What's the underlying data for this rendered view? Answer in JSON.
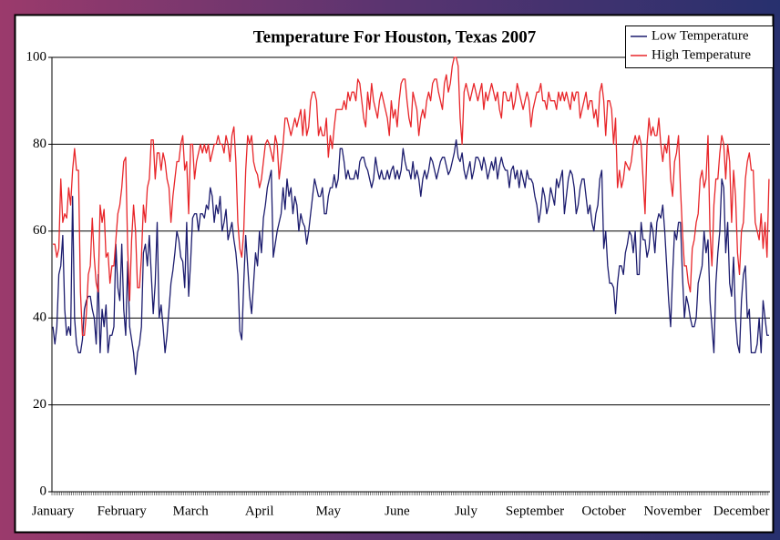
{
  "chart_data": {
    "type": "line",
    "title": "Temperature For Houston, Texas 2007",
    "categories": [
      "January",
      null,
      null,
      null,
      null,
      null,
      null,
      null,
      null,
      null,
      null,
      null,
      null,
      null,
      null,
      null,
      null,
      null,
      null,
      null,
      null,
      null,
      null,
      null,
      null,
      null,
      null,
      null,
      null,
      null,
      null,
      null,
      null,
      null,
      null,
      "February",
      null,
      null,
      null,
      null,
      null,
      null,
      null,
      null,
      null,
      null,
      null,
      null,
      null,
      null,
      null,
      null,
      null,
      null,
      null,
      null,
      null,
      null,
      null,
      null,
      null,
      null,
      null,
      null,
      null,
      null,
      null,
      null,
      null,
      null,
      "March",
      null,
      null,
      null,
      null,
      null,
      null,
      null,
      null,
      null,
      null,
      null,
      null,
      null,
      null,
      null,
      null,
      null,
      null,
      null,
      null,
      null,
      null,
      null,
      null,
      null,
      null,
      null,
      null,
      null,
      null,
      null,
      null,
      null,
      null,
      "April",
      null,
      null,
      null,
      null,
      null,
      null,
      null,
      null,
      null,
      null,
      null,
      null,
      null,
      null,
      null,
      null,
      null,
      null,
      null,
      null,
      null,
      null,
      null,
      null,
      null,
      null,
      null,
      null,
      null,
      null,
      null,
      null,
      null,
      null,
      "May",
      null,
      null,
      null,
      null,
      null,
      null,
      null,
      null,
      null,
      null,
      null,
      null,
      null,
      null,
      null,
      null,
      null,
      null,
      null,
      null,
      null,
      null,
      null,
      null,
      null,
      null,
      null,
      null,
      null,
      null,
      null,
      null,
      null,
      null,
      "June",
      null,
      null,
      null,
      null,
      null,
      null,
      null,
      null,
      null,
      null,
      null,
      null,
      null,
      null,
      null,
      null,
      null,
      null,
      null,
      null,
      null,
      null,
      null,
      null,
      null,
      null,
      null,
      null,
      null,
      null,
      null,
      null,
      null,
      null,
      "July",
      null,
      null,
      null,
      null,
      null,
      null,
      null,
      null,
      null,
      null,
      null,
      null,
      null,
      null,
      null,
      null,
      null,
      null,
      null,
      null,
      null,
      null,
      null,
      null,
      null,
      null,
      null,
      null,
      null,
      null,
      null,
      null,
      null,
      null,
      "September",
      null,
      null,
      null,
      null,
      null,
      null,
      null,
      null,
      null,
      null,
      null,
      null,
      null,
      null,
      null,
      null,
      null,
      null,
      null,
      null,
      null,
      null,
      null,
      null,
      null,
      null,
      null,
      null,
      null,
      null,
      null,
      null,
      null,
      null,
      "October",
      null,
      null,
      null,
      null,
      null,
      null,
      null,
      null,
      null,
      null,
      null,
      null,
      null,
      null,
      null,
      null,
      null,
      null,
      null,
      null,
      null,
      null,
      null,
      null,
      null,
      null,
      null,
      null,
      null,
      null,
      null,
      null,
      null,
      null,
      "November",
      null,
      null,
      null,
      null,
      null,
      null,
      null,
      null,
      null,
      null,
      null,
      null,
      null,
      null,
      null,
      null,
      null,
      null,
      null,
      null,
      null,
      null,
      null,
      null,
      null,
      null,
      null,
      null,
      null,
      null,
      null,
      null,
      null,
      null,
      "December",
      null,
      null,
      null,
      null,
      null,
      null,
      null,
      null,
      null,
      null,
      null,
      null,
      null,
      null
    ],
    "series": [
      {
        "name": "Low Temperature",
        "color": "#1c1c6e",
        "values": [
          38,
          34,
          38,
          50,
          52,
          59,
          42,
          36,
          38,
          36,
          68,
          40,
          34,
          32,
          32,
          35,
          42,
          44,
          45,
          45,
          42,
          40,
          34,
          50,
          32,
          42,
          38,
          43,
          32,
          36,
          36,
          38,
          57,
          47,
          44,
          57,
          42,
          36,
          53,
          38,
          35,
          32,
          27,
          32,
          34,
          38,
          55,
          57,
          52,
          59,
          50,
          41,
          48,
          62,
          40,
          43,
          38,
          32,
          36,
          42,
          48,
          51,
          55,
          60,
          58,
          54,
          53,
          47,
          62,
          45,
          53,
          63,
          64,
          64,
          60,
          64,
          64,
          63,
          66,
          65,
          70,
          68,
          62,
          66,
          64,
          68,
          60,
          62,
          65,
          58,
          60,
          62,
          58,
          55,
          50,
          37,
          35,
          48,
          59,
          52,
          45,
          41,
          48,
          55,
          52,
          60,
          55,
          63,
          66,
          70,
          72,
          74,
          54,
          57,
          60,
          62,
          64,
          70,
          65,
          72,
          68,
          70,
          64,
          68,
          66,
          60,
          64,
          62,
          61,
          57,
          60,
          64,
          68,
          72,
          70,
          68,
          68,
          70,
          64,
          64,
          68,
          70,
          70,
          73,
          70,
          72,
          79,
          79,
          76,
          72,
          74,
          72,
          72,
          72,
          74,
          72,
          76,
          77,
          77,
          75,
          74,
          72,
          70,
          72,
          77,
          74,
          72,
          74,
          72,
          72,
          74,
          72,
          74,
          75,
          72,
          74,
          72,
          74,
          79,
          76,
          74,
          74,
          72,
          76,
          72,
          74,
          72,
          68,
          72,
          74,
          72,
          74,
          77,
          76,
          74,
          72,
          74,
          76,
          77,
          77,
          75,
          73,
          74,
          76,
          78,
          81,
          77,
          76,
          78,
          74,
          72,
          74,
          76,
          72,
          74,
          77,
          77,
          76,
          74,
          77,
          75,
          72,
          74,
          76,
          74,
          77,
          72,
          75,
          77,
          75,
          74,
          74,
          70,
          74,
          75,
          72,
          74,
          70,
          74,
          72,
          70,
          74,
          72,
          72,
          71,
          68,
          66,
          62,
          65,
          70,
          68,
          64,
          66,
          70,
          68,
          66,
          72,
          70,
          72,
          74,
          64,
          68,
          72,
          74,
          73,
          70,
          64,
          66,
          70,
          72,
          72,
          68,
          64,
          66,
          62,
          60,
          64,
          66,
          72,
          74,
          56,
          60,
          52,
          48,
          48,
          47,
          41,
          48,
          52,
          52,
          50,
          55,
          57,
          60,
          59,
          55,
          60,
          50,
          50,
          62,
          58,
          58,
          54,
          56,
          62,
          60,
          55,
          62,
          64,
          63,
          66,
          60,
          52,
          44,
          38,
          50,
          60,
          58,
          62,
          62,
          50,
          40,
          45,
          43,
          40,
          38,
          38,
          40,
          48,
          50,
          52,
          60,
          55,
          58,
          44,
          38,
          32,
          48,
          55,
          60,
          72,
          70,
          55,
          62,
          48,
          45,
          54,
          40,
          34,
          32,
          44,
          50,
          52,
          40,
          42,
          32,
          32,
          32,
          34,
          40,
          32,
          44,
          40,
          36,
          36
        ]
      },
      {
        "name": "High Temperature",
        "color": "#e8262a",
        "values": [
          57,
          57,
          54,
          56,
          72,
          62,
          64,
          63,
          70,
          66,
          74,
          79,
          74,
          74,
          46,
          36,
          36,
          41,
          50,
          52,
          63,
          54,
          48,
          46,
          66,
          62,
          65,
          54,
          55,
          48,
          52,
          52,
          58,
          64,
          66,
          70,
          76,
          77,
          56,
          44,
          58,
          66,
          60,
          47,
          47,
          54,
          66,
          62,
          70,
          72,
          81,
          81,
          72,
          78,
          78,
          74,
          78,
          76,
          72,
          70,
          62,
          68,
          72,
          76,
          76,
          80,
          82,
          74,
          76,
          64,
          80,
          80,
          72,
          76,
          78,
          80,
          78,
          80,
          78,
          80,
          76,
          78,
          80,
          80,
          82,
          80,
          80,
          78,
          82,
          80,
          76,
          82,
          84,
          76,
          62,
          56,
          54,
          60,
          74,
          82,
          80,
          82,
          76,
          74,
          73,
          70,
          72,
          76,
          80,
          81,
          80,
          78,
          76,
          82,
          80,
          72,
          76,
          80,
          86,
          86,
          84,
          82,
          84,
          86,
          84,
          86,
          88,
          82,
          88,
          82,
          84,
          90,
          92,
          92,
          90,
          82,
          84,
          82,
          82,
          86,
          77,
          82,
          79,
          84,
          88,
          88,
          88,
          88,
          90,
          88,
          92,
          90,
          92,
          92,
          90,
          95,
          94,
          90,
          86,
          84,
          92,
          88,
          94,
          90,
          88,
          86,
          90,
          92,
          90,
          88,
          86,
          82,
          90,
          86,
          88,
          84,
          90,
          94,
          95,
          95,
          90,
          86,
          84,
          92,
          90,
          88,
          82,
          86,
          88,
          86,
          90,
          92,
          90,
          94,
          95,
          95,
          92,
          90,
          88,
          94,
          96,
          92,
          94,
          98,
          100,
          100,
          98,
          86,
          80,
          92,
          94,
          92,
          90,
          92,
          94,
          92,
          90,
          92,
          94,
          88,
          92,
          90,
          92,
          94,
          92,
          90,
          92,
          88,
          86,
          92,
          92,
          90,
          90,
          92,
          88,
          90,
          94,
          92,
          90,
          88,
          90,
          92,
          90,
          84,
          88,
          90,
          92,
          92,
          94,
          90,
          90,
          88,
          92,
          90,
          90,
          90,
          88,
          92,
          90,
          92,
          90,
          92,
          90,
          88,
          92,
          90,
          92,
          92,
          86,
          88,
          90,
          92,
          88,
          90,
          90,
          86,
          88,
          84,
          92,
          94,
          90,
          82,
          90,
          90,
          88,
          80,
          86,
          70,
          74,
          70,
          72,
          76,
          75,
          74,
          76,
          80,
          82,
          80,
          82,
          80,
          72,
          64,
          80,
          86,
          82,
          84,
          82,
          82,
          86,
          80,
          76,
          80,
          78,
          82,
          72,
          68,
          76,
          78,
          82,
          70,
          60,
          52,
          52,
          48,
          46,
          56,
          58,
          62,
          64,
          72,
          74,
          70,
          72,
          82,
          60,
          52,
          66,
          72,
          72,
          78,
          82,
          80,
          72,
          80,
          76,
          62,
          74,
          68,
          55,
          50,
          60,
          62,
          72,
          76,
          78,
          74,
          74,
          62,
          60,
          58,
          64,
          56,
          62,
          54,
          72
        ]
      }
    ],
    "ylim": [
      0,
      100
    ],
    "yticks": [
      0,
      20,
      40,
      60,
      80,
      100
    ],
    "grid": true,
    "legend": "top-right"
  }
}
